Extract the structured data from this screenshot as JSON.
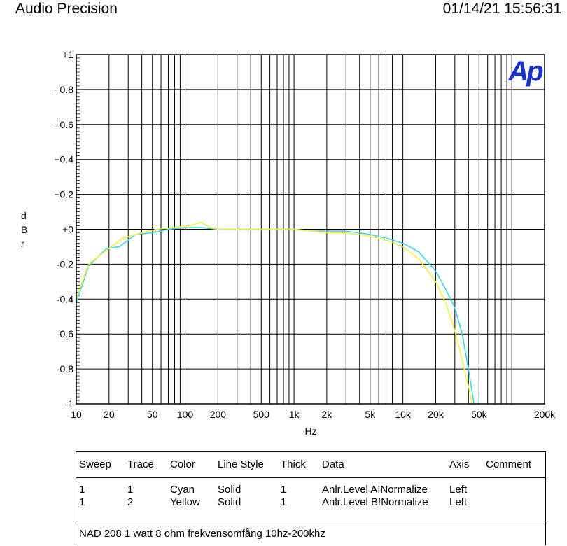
{
  "header": {
    "left": "Audio Precision",
    "right": "01/14/21 15:56:31"
  },
  "logo_text": "Ap",
  "chart_data": {
    "type": "line",
    "xlabel": "Hz",
    "ylabel": "dBr",
    "xscale": "log",
    "xlim": [
      10,
      200000
    ],
    "ylim": [
      -1,
      1
    ],
    "x_ticks": [
      {
        "v": 10,
        "label": "10"
      },
      {
        "v": 20,
        "label": "20"
      },
      {
        "v": 50,
        "label": "50"
      },
      {
        "v": 100,
        "label": "100"
      },
      {
        "v": 200,
        "label": "200"
      },
      {
        "v": 500,
        "label": "500"
      },
      {
        "v": 1000,
        "label": "1k"
      },
      {
        "v": 2000,
        "label": "2k"
      },
      {
        "v": 5000,
        "label": "5k"
      },
      {
        "v": 10000,
        "label": "10k"
      },
      {
        "v": 20000,
        "label": "20k"
      },
      {
        "v": 50000,
        "label": "50k"
      },
      {
        "v": 200000,
        "label": "200k"
      }
    ],
    "y_ticks": [
      {
        "v": 1,
        "label": "+1"
      },
      {
        "v": 0.8,
        "label": "+0.8"
      },
      {
        "v": 0.6,
        "label": "+0.6"
      },
      {
        "v": 0.4,
        "label": "+0.4"
      },
      {
        "v": 0.2,
        "label": "+0.2"
      },
      {
        "v": 0,
        "label": "+0"
      },
      {
        "v": -0.2,
        "label": "-0.2"
      },
      {
        "v": -0.4,
        "label": "-0.4"
      },
      {
        "v": -0.6,
        "label": "-0.6"
      },
      {
        "v": -0.8,
        "label": "-0.8"
      },
      {
        "v": -1,
        "label": "-1"
      }
    ],
    "grid": true,
    "series": [
      {
        "color": "#38d8e8",
        "points": [
          [
            10,
            -0.42
          ],
          [
            13,
            -0.21
          ],
          [
            19,
            -0.11
          ],
          [
            25,
            -0.1
          ],
          [
            35,
            -0.03
          ],
          [
            50,
            -0.02
          ],
          [
            70,
            0.0
          ],
          [
            100,
            0.01
          ],
          [
            140,
            0.01
          ],
          [
            200,
            0.0
          ],
          [
            300,
            0.0
          ],
          [
            500,
            0.0
          ],
          [
            700,
            0.0
          ],
          [
            1000,
            0.0
          ],
          [
            1500,
            -0.01
          ],
          [
            2000,
            -0.01
          ],
          [
            3000,
            -0.01
          ],
          [
            5000,
            -0.03
          ],
          [
            7000,
            -0.05
          ],
          [
            10000,
            -0.08
          ],
          [
            14000,
            -0.13
          ],
          [
            20000,
            -0.24
          ],
          [
            25000,
            -0.35
          ],
          [
            30000,
            -0.45
          ],
          [
            35000,
            -0.6
          ],
          [
            40000,
            -0.8
          ],
          [
            45000,
            -1.0
          ]
        ]
      },
      {
        "color": "#f4ef3c",
        "points": [
          [
            10,
            -0.4
          ],
          [
            13,
            -0.2
          ],
          [
            19,
            -0.12
          ],
          [
            27,
            -0.05
          ],
          [
            40,
            -0.02
          ],
          [
            55,
            0.0
          ],
          [
            80,
            0.01
          ],
          [
            110,
            0.02
          ],
          [
            140,
            0.04
          ],
          [
            170,
            0.01
          ],
          [
            200,
            0.0
          ],
          [
            300,
            0.0
          ],
          [
            500,
            0.0
          ],
          [
            700,
            0.0
          ],
          [
            1000,
            0.0
          ],
          [
            1500,
            -0.01
          ],
          [
            2000,
            -0.02
          ],
          [
            3000,
            -0.02
          ],
          [
            5000,
            -0.04
          ],
          [
            7000,
            -0.06
          ],
          [
            10000,
            -0.1
          ],
          [
            14000,
            -0.17
          ],
          [
            20000,
            -0.3
          ],
          [
            25000,
            -0.43
          ],
          [
            30000,
            -0.58
          ],
          [
            35000,
            -0.75
          ],
          [
            40000,
            -0.9
          ],
          [
            43000,
            -1.0
          ]
        ]
      }
    ]
  },
  "legend": {
    "headers": [
      "Sweep",
      "Trace",
      "Color",
      "Line Style",
      "Thick",
      "Data",
      "Axis",
      "Comment"
    ],
    "rows": [
      [
        "1",
        "1",
        "Cyan",
        "Solid",
        "1",
        "Anlr.Level A!Normalize",
        "Left",
        ""
      ],
      [
        "1",
        "2",
        "Yellow",
        "Solid",
        "1",
        "Anlr.Level B!Normalize",
        "Left",
        ""
      ]
    ],
    "footer": "NAD 208 1 watt 8 ohm frekvensomfång 10hz-200khz"
  }
}
